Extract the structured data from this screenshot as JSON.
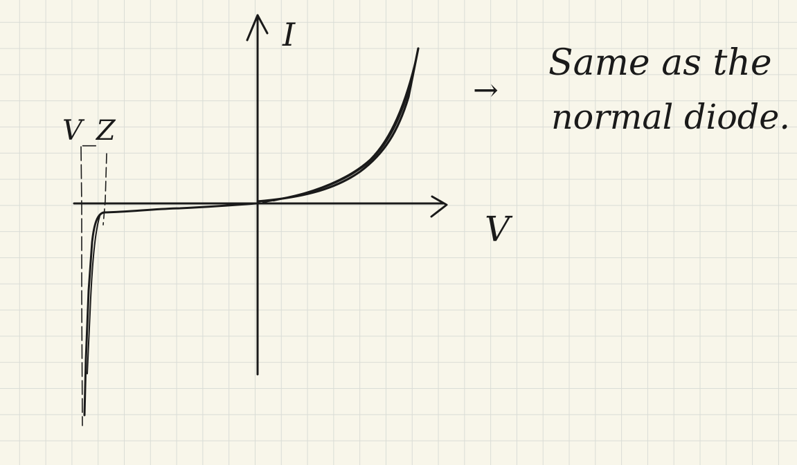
{
  "diagram": {
    "axis_labels": {
      "current": "I",
      "voltage": "V"
    },
    "breakdown_label": "V_Z",
    "annotation": {
      "arrow": "→",
      "line1": "Same as the",
      "line2": "normal diode."
    }
  },
  "colors": {
    "paper": "#f8f6ea",
    "grid": "#d9dcd6",
    "ink": "#1a1a1a"
  }
}
